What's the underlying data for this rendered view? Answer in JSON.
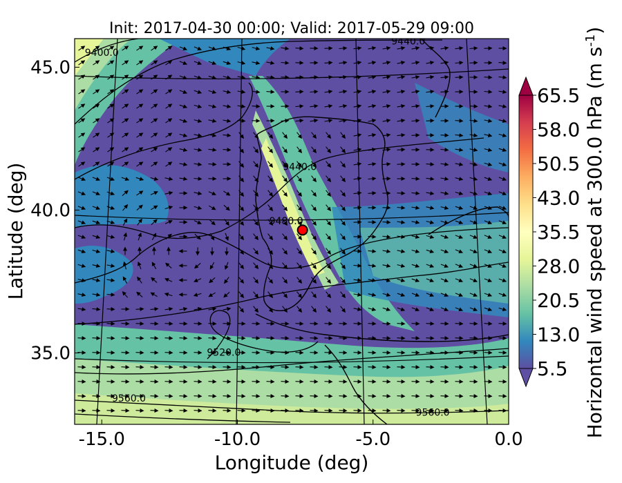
{
  "title": "Init: 2017-04-30 00:00; Valid: 2017-05-29 09:00",
  "axes": {
    "xlabel": "Longitude (deg)",
    "ylabel": "Latitude (deg)",
    "xlim": [
      -16.0,
      0.0
    ],
    "ylim": [
      32.5,
      46.0
    ],
    "xticks": [
      {
        "value": -15.0,
        "label": "-15.0"
      },
      {
        "value": -10.0,
        "label": "-10.0"
      },
      {
        "value": -5.0,
        "label": "-5.0"
      },
      {
        "value": 0.0,
        "label": "0.0"
      }
    ],
    "yticks": [
      {
        "value": 45.0,
        "label": "45.0"
      },
      {
        "value": 40.0,
        "label": "40.0"
      },
      {
        "value": 35.0,
        "label": "35.0"
      }
    ]
  },
  "colorbar": {
    "label": "Horizontal wind speed at 300.0 hPa (m s",
    "label_exponent": "-1",
    "label_close": ")",
    "range": [
      5.5,
      65.5
    ],
    "extend": "both",
    "ticks": [
      {
        "value": 65.5,
        "label": "65.5"
      },
      {
        "value": 58.0,
        "label": "58.0"
      },
      {
        "value": 50.5,
        "label": "50.5"
      },
      {
        "value": 43.0,
        "label": "43.0"
      },
      {
        "value": 35.5,
        "label": "35.5"
      },
      {
        "value": 28.0,
        "label": "28.0"
      },
      {
        "value": 20.5,
        "label": "20.5"
      },
      {
        "value": 13.0,
        "label": "13.0"
      },
      {
        "value": 5.5,
        "label": "5.5"
      }
    ],
    "colormap": [
      "#5e4fa2",
      "#3288bd",
      "#66c2a5",
      "#abdda4",
      "#e6f598",
      "#ffffbf",
      "#fee08b",
      "#fdae61",
      "#f46d43",
      "#d53e4f",
      "#9e0142"
    ]
  },
  "contour_labels": [
    {
      "text": "9400.0",
      "lon": -15.0,
      "lat": 45.4
    },
    {
      "text": "9440.0",
      "lon": -3.7,
      "lat": 45.8
    },
    {
      "text": "9440.0",
      "lon": -7.7,
      "lat": 41.4
    },
    {
      "text": "9480.0",
      "lon": -8.2,
      "lat": 39.5
    },
    {
      "text": "9520.0",
      "lon": -10.5,
      "lat": 34.9
    },
    {
      "text": "9560.0",
      "lon": -14.0,
      "lat": 33.3
    },
    {
      "text": "9560.0",
      "lon": -2.8,
      "lat": 32.8
    }
  ],
  "marker": {
    "lon": -7.6,
    "lat": 39.3,
    "color": "#ff0000"
  },
  "map_colors": {
    "background": "#5e4fa2",
    "jet_core": "#e6f598",
    "contour": "#000000",
    "coast": "#000000"
  }
}
